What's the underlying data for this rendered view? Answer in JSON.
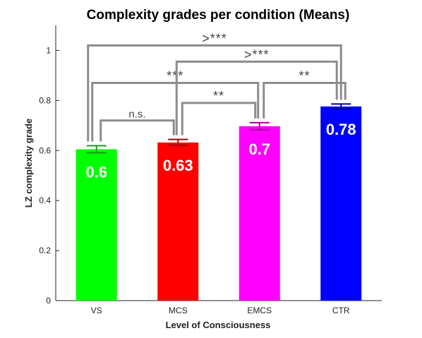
{
  "chart_data": {
    "type": "bar",
    "title": "Complexity grades per condition (Means)",
    "xlabel": "Level of Consciousness",
    "ylabel": "LZ complexity grade",
    "categories": [
      "VS",
      "MCS",
      "EMCS",
      "CTR"
    ],
    "values": [
      0.605,
      0.632,
      0.697,
      0.776
    ],
    "errors": [
      0.014,
      0.012,
      0.014,
      0.01
    ],
    "data_labels": [
      "0.6",
      "0.63",
      "0.7",
      "0.78"
    ],
    "colors": [
      "#00ff00",
      "#ff0000",
      "#ff00ff",
      "#0000ff"
    ],
    "error_colors": [
      "#1a9a1a",
      "#a00000",
      "#a000a0",
      "#00008b"
    ],
    "ylim": [
      0,
      1.1
    ],
    "yticks": [
      0,
      0.2,
      0.4,
      0.6,
      0.8,
      1
    ],
    "ytick_labels": [
      "0",
      "0.2",
      "0.4",
      "0.6",
      "0.8",
      "1"
    ],
    "grid": false,
    "significance": [
      {
        "from": 0,
        "to": 1,
        "label": "n.s.",
        "level": 0.72
      },
      {
        "from": 2,
        "to": 3,
        "label": "**",
        "level": 0.87
      },
      {
        "from": 1,
        "to": 2,
        "label": "**",
        "level": 0.79
      },
      {
        "from": 0,
        "to": 2,
        "label": "***",
        "level": 0.87
      },
      {
        "from": 1,
        "to": 3,
        "label": ">***",
        "level": 0.955
      },
      {
        "from": 0,
        "to": 3,
        "label": ">***",
        "level": 1.02
      }
    ]
  }
}
